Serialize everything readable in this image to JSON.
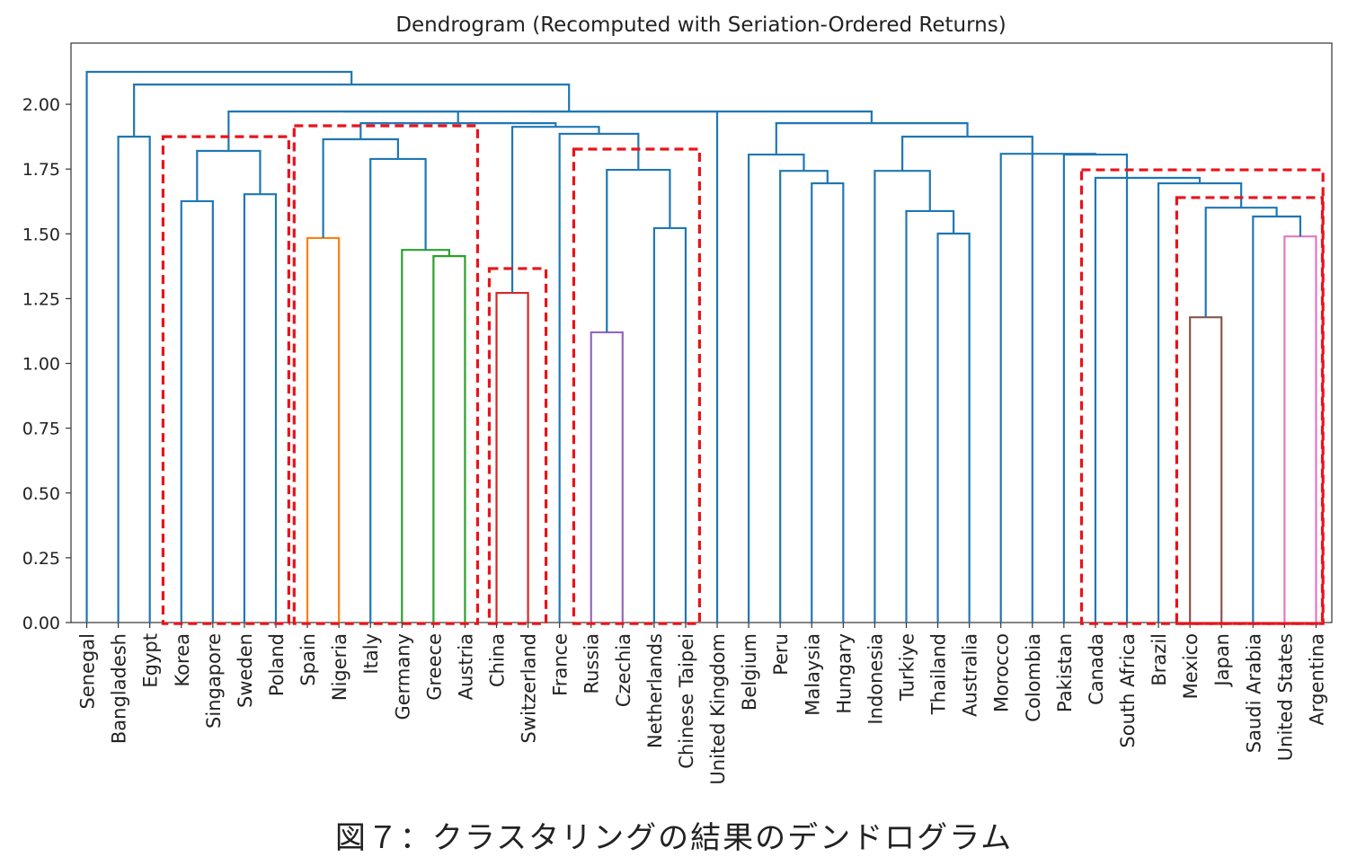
{
  "chart_data": {
    "type": "dendrogram",
    "title": "Dendrogram (Recomputed with Seriation-Ordered Returns)",
    "xlabel": "",
    "ylabel": "",
    "ylim": [
      0,
      2.236
    ],
    "xlim": [
      -0.5,
      39.5
    ],
    "yticks": [
      0,
      0.25,
      0.5,
      0.75,
      1.0,
      1.25,
      1.5,
      1.75,
      2.0
    ],
    "ytick_labels": [
      "0.00",
      "0.25",
      "0.50",
      "0.75",
      "1.00",
      "1.25",
      "1.50",
      "1.75",
      "2.00"
    ],
    "grid": false,
    "leaves": [
      "Senegal",
      "Bangladesh",
      "Egypt",
      "Korea",
      "Singapore",
      "Sweden",
      "Poland",
      "Spain",
      "Nigeria",
      "Italy",
      "Germany",
      "Greece",
      "Austria",
      "China",
      "Switzerland",
      "France",
      "Russia",
      "Czechia",
      "Netherlands",
      "Chinese Taipei",
      "United Kingdom",
      "Belgium",
      "Peru",
      "Malaysia",
      "Hungary",
      "Indonesia",
      "Turkiye",
      "Thailand",
      "Australia",
      "Morocco",
      "Colombia",
      "Pakistan",
      "Canada",
      "South Africa",
      "Brazil",
      "Mexico",
      "Japan",
      "Saudi Arabia",
      "United States",
      "Argentina"
    ],
    "links_format": "[left_leaf_pos, right_leaf_pos, left_bottom_height, right_bottom_height, merge_height, color]",
    "links": [
      [
        3,
        4,
        0,
        0,
        1.626,
        "#1f77b4"
      ],
      [
        5,
        6,
        0,
        0,
        1.653,
        "#1f77b4"
      ],
      [
        3.5,
        5.5,
        1.626,
        1.653,
        1.82,
        "#1f77b4"
      ],
      [
        1,
        2,
        0,
        0,
        1.875,
        "#1f77b4"
      ],
      [
        7,
        8,
        0,
        0,
        1.484,
        "#ff7f0e"
      ],
      [
        11,
        12,
        0,
        0,
        1.414,
        "#2ca02c"
      ],
      [
        10,
        11.5,
        0,
        1.414,
        1.438,
        "#2ca02c"
      ],
      [
        9,
        10.75,
        0,
        1.438,
        1.789,
        "#1f77b4"
      ],
      [
        7.5,
        9.875,
        1.484,
        1.789,
        1.865,
        "#1f77b4"
      ],
      [
        13,
        14,
        0,
        0,
        1.272,
        "#d62728"
      ],
      [
        16,
        17,
        0,
        0,
        1.12,
        "#9467bd"
      ],
      [
        18,
        19,
        0,
        0,
        1.522,
        "#1f77b4"
      ],
      [
        16.5,
        18.5,
        1.12,
        1.522,
        1.747,
        "#1f77b4"
      ],
      [
        15,
        17.5,
        0,
        1.747,
        1.886,
        "#1f77b4"
      ],
      [
        13.5,
        16.25,
        1.272,
        1.886,
        1.913,
        "#1f77b4"
      ],
      [
        8.69,
        14.875,
        1.865,
        1.913,
        1.927,
        "#1f77b4"
      ],
      [
        4.5,
        11.78,
        1.82,
        1.927,
        1.972,
        "#1f77b4"
      ],
      [
        8.14,
        20,
        1.972,
        0,
        1.972,
        "#1f77b4"
      ],
      [
        23,
        24,
        0,
        0,
        1.695,
        "#1f77b4"
      ],
      [
        22,
        23.5,
        0,
        1.695,
        1.743,
        "#1f77b4"
      ],
      [
        21,
        22.75,
        0,
        1.743,
        1.806,
        "#1f77b4"
      ],
      [
        27,
        28,
        0,
        0,
        1.501,
        "#1f77b4"
      ],
      [
        26,
        27.5,
        0,
        1.501,
        1.588,
        "#1f77b4"
      ],
      [
        25,
        26.75,
        0,
        1.588,
        1.743,
        "#1f77b4"
      ],
      [
        25.875,
        30,
        1.743,
        0,
        1.875,
        "#1f77b4"
      ],
      [
        21.875,
        27.94,
        1.806,
        1.875,
        1.927,
        "#1f77b4"
      ],
      [
        14.07,
        24.9,
        1.972,
        1.927,
        1.972,
        "#1f77b4"
      ],
      [
        1.5,
        15.3,
        1.875,
        1.972,
        2.076,
        "#1f77b4"
      ],
      [
        0,
        8.4,
        0,
        2.076,
        2.125,
        "#1f77b4"
      ],
      [
        38,
        39,
        0,
        0,
        1.49,
        "#e377c2"
      ],
      [
        37,
        38.5,
        0,
        1.49,
        1.567,
        "#1f77b4"
      ],
      [
        35,
        36,
        0,
        0,
        1.178,
        "#8c564b"
      ],
      [
        35.5,
        37.75,
        1.178,
        1.567,
        1.601,
        "#1f77b4"
      ],
      [
        34,
        36.625,
        0,
        1.601,
        1.695,
        "#1f77b4"
      ],
      [
        32,
        35.31,
        0,
        1.695,
        1.716,
        "#1f77b4"
      ],
      [
        31,
        33,
        0,
        0,
        1.806,
        "#1f77b4"
      ],
      [
        29,
        32,
        0,
        1.806,
        1.809,
        "#1f77b4"
      ]
    ],
    "highlight_boxes_format": "[x_from_leaf_pos, x_to_leaf_pos, top_height]",
    "highlight_boxes": [
      [
        2.42,
        6.41,
        1.875
      ],
      [
        6.58,
        12.4,
        1.917
      ],
      [
        12.77,
        14.57,
        1.366
      ],
      [
        15.45,
        19.44,
        1.827
      ],
      [
        31.56,
        39.22,
        1.747
      ],
      [
        34.58,
        39.2,
        1.64
      ]
    ],
    "highlight_color": "#e8141b"
  },
  "caption": "図７：クラスタリングの結果のデンドログラム"
}
